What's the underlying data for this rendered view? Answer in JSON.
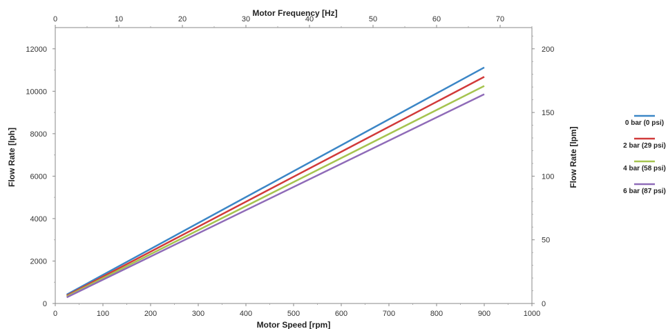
{
  "chart_data": {
    "type": "line",
    "x": [
      24,
      900
    ],
    "series": [
      {
        "name": "0 bar (0 psi)",
        "values": [
          420,
          11120
        ],
        "color": "#3b86c6"
      },
      {
        "name": "2 bar (29 psi)",
        "values": [
          370,
          10680
        ],
        "color": "#d13a3a"
      },
      {
        "name": "4 bar (58 psi)",
        "values": [
          330,
          10250
        ],
        "color": "#a5c44f"
      },
      {
        "name": "6 bar (87 psi)",
        "values": [
          290,
          9860
        ],
        "color": "#8f6bb8"
      }
    ],
    "xlabel": "Motor Speed [rpm]",
    "ylabel": "Flow Rate [lph]",
    "x2label": "Motor Frequency [Hz]",
    "y2label": "Flow Rate [lpm]",
    "xlim": [
      0,
      1000
    ],
    "ylim": [
      0,
      13000
    ],
    "x2lim": [
      0,
      75
    ],
    "y2lim": [
      0,
      216.67
    ],
    "xticks": [
      0,
      100,
      200,
      300,
      400,
      500,
      600,
      700,
      800,
      900,
      1000
    ],
    "yticks": [
      0,
      2000,
      4000,
      6000,
      8000,
      10000,
      12000
    ],
    "x2ticks": [
      0,
      10,
      20,
      30,
      40,
      50,
      60,
      70
    ],
    "y2ticks": [
      0,
      50,
      100,
      150,
      200
    ],
    "grid": false,
    "legend_position": "right"
  }
}
